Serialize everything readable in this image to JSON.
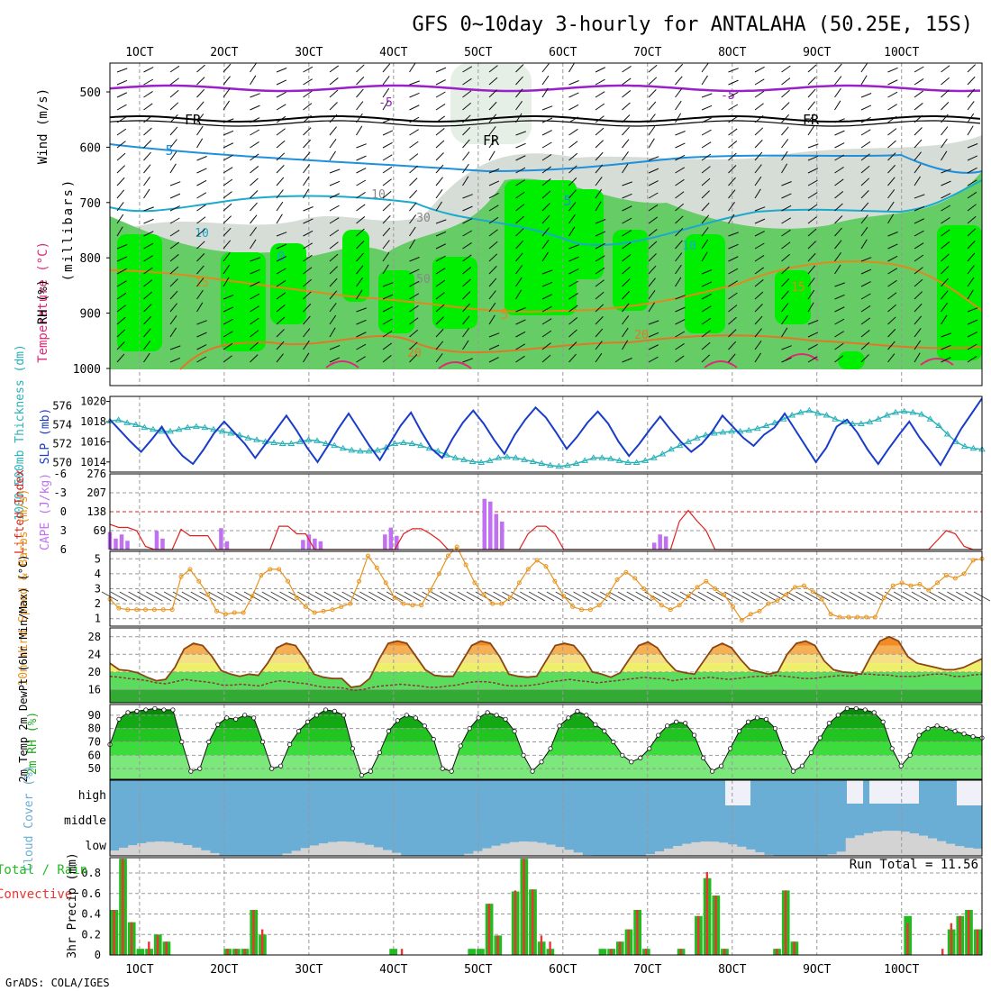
{
  "title": "GFS 0~10day 3-hourly for ANTALAHA (50.25E, 15S)",
  "credit": "GrADS: COLA/IGES",
  "date_labels": [
    "1OCT",
    "2OCT",
    "3OCT",
    "4OCT",
    "5OCT",
    "6OCT",
    "7OCT",
    "8OCT",
    "9OCT",
    "10OCT"
  ],
  "colors": {
    "grid": "#999999",
    "rh_light": "#d6dcd6",
    "rh_mid": "#66cc66",
    "rh_high": "#00ee00",
    "temp_5": "#1e90dc",
    "temp_10": "#1aaacc",
    "temp_15": "#e08a1e",
    "temp_20": "#e07828",
    "temp_minus5": "#9a20c8",
    "temp_25": "#e0287a",
    "slp": "#1a3cc8",
    "thickness": "#2ab2b8",
    "cape": "#c070f0",
    "lifted_index": "#dd2222",
    "wind10m": "#e8941e",
    "dewpoint": "#8b3a3a",
    "cloud_blue": "#6aaed6",
    "cloud_white": "#f0f0f8",
    "cloud_low": "#d3d3d3",
    "precip_total": "#22bb22",
    "precip_conv": "#ee3333"
  },
  "panels": {
    "upper_air": {
      "ylabel_wind": "Wind (m/s)",
      "ylabel_temp": "Temperature (°C)",
      "ylabel_rh": "RH (%)",
      "ylabel_units": "(millibars)",
      "ylevels": [
        500,
        600,
        700,
        800,
        900,
        1000
      ],
      "contour_labels": [
        "-5",
        "FR",
        "FR",
        "5",
        "5",
        "10",
        "10",
        "0",
        "15",
        "15",
        "5",
        "20",
        "20",
        "50",
        "30",
        "10"
      ]
    },
    "pressure": {
      "ylabel_left": "1000-500mb Thickness (dm)",
      "ylabel_right": "SLP (mb)",
      "left_ticks": [
        "576",
        "574",
        "572",
        "570"
      ],
      "right_ticks": [
        "1020",
        "1018",
        "1016",
        "1014"
      ]
    },
    "stability": {
      "ylabel_left": "Lifted Index",
      "ylabel_right": "CAPE (J/kg)",
      "left_ticks": [
        "-6",
        "-3",
        "0",
        "3",
        "6"
      ],
      "right_ticks": [
        "276",
        "207",
        "138",
        "69"
      ]
    },
    "wind10m": {
      "ylabel": "10m Wind Speed & Barbs (m/s)",
      "ticks": [
        "5",
        "4",
        "3",
        "2",
        "1"
      ]
    },
    "temp2m": {
      "ylabel": "2m Temp 2m DewPt (6hr Min/Max) (°C)",
      "ticks": [
        "28",
        "24",
        "20",
        "16"
      ]
    },
    "rh2m": {
      "ylabel": "2m RH (%)",
      "ticks": [
        "90",
        "80",
        "70",
        "60",
        "50"
      ]
    },
    "cloud": {
      "ylabel": "Cloud Cover (%)",
      "levels": [
        "high",
        "middle",
        "low"
      ]
    },
    "precip": {
      "ylabel_total": "Total / Rain",
      "ylabel_conv": "Convective",
      "ylabel_units": "3hr Precip (mm)",
      "ticks": [
        "0.8",
        "0.6",
        "0.4",
        "0.2",
        "0"
      ],
      "run_total": "Run Total = 11.56"
    }
  },
  "chart_data": [
    {
      "type": "line",
      "name": "Sea Level Pressure",
      "ylabel": "SLP (mb)",
      "ylim": [
        1013,
        1020.5
      ],
      "x_step_hours": 3,
      "values": [
        1018.2,
        1017.1,
        1016.0,
        1015.0,
        1016.2,
        1017.5,
        1015.8,
        1014.6,
        1013.8,
        1015.2,
        1016.8,
        1018.0,
        1016.9,
        1015.8,
        1014.4,
        1015.8,
        1017.2,
        1018.6,
        1017.1,
        1015.4,
        1014.0,
        1015.6,
        1017.3,
        1018.8,
        1017.2,
        1015.6,
        1014.2,
        1015.9,
        1017.6,
        1018.9,
        1017.0,
        1015.3,
        1014.4,
        1016.3,
        1017.9,
        1019.1,
        1017.8,
        1016.2,
        1014.8,
        1016.7,
        1018.2,
        1019.4,
        1018.4,
        1016.9,
        1015.3,
        1016.5,
        1017.9,
        1019.0,
        1017.8,
        1016.0,
        1014.6,
        1015.8,
        1017.2,
        1018.5,
        1017.2,
        1016.0,
        1015.0,
        1015.8,
        1017.0,
        1018.6,
        1017.5,
        1016.4,
        1015.6,
        1016.7,
        1017.4,
        1018.8,
        1017.2,
        1015.6,
        1014.0,
        1015.4,
        1017.5,
        1018.2,
        1016.9,
        1015.2,
        1013.8,
        1015.3,
        1016.7,
        1018.0,
        1016.4,
        1015.1,
        1013.7,
        1015.5,
        1017.3,
        1018.8,
        1020.3
      ]
    },
    {
      "type": "line",
      "name": "1000-500mb Thickness",
      "ylabel": "1000-500mb Thickness (dm)",
      "ylim": [
        569,
        577
      ],
      "x_step_hours": 3,
      "values": [
        574.4,
        574.5,
        574.2,
        574.0,
        573.7,
        573.5,
        573.3,
        573.3,
        573.5,
        573.7,
        573.8,
        573.7,
        573.5,
        573.3,
        573.1,
        572.9,
        572.6,
        572.4,
        572.2,
        572.1,
        572.0,
        572.0,
        572.2,
        572.4,
        572.3,
        572.0,
        571.8,
        571.5,
        571.3,
        571.2,
        571.2,
        571.3,
        571.6,
        572.0,
        572.1,
        572.0,
        571.8,
        571.5,
        571.2,
        570.8,
        570.5,
        570.3,
        570.1,
        570.0,
        570.2,
        570.5,
        570.6,
        570.5,
        570.3,
        570.1,
        569.9,
        569.7,
        569.6,
        569.7,
        569.9,
        570.2,
        570.5,
        570.5,
        570.4,
        570.2,
        570.0,
        570.0,
        570.2,
        570.5,
        570.9,
        571.4,
        571.8,
        572.2,
        572.6,
        572.9,
        573.1,
        573.2,
        573.3,
        573.3,
        573.4,
        573.6,
        573.9,
        574.2,
        574.6,
        575.0,
        575.3,
        575.5,
        575.2,
        575.0,
        574.6,
        574.3,
        574.1,
        574.1,
        574.3,
        574.6,
        575.0,
        575.3,
        575.4,
        575.3,
        575.1,
        574.6,
        573.9,
        573.0,
        572.2,
        571.7,
        571.5,
        571.4
      ]
    },
    {
      "type": "bar",
      "name": "CAPE",
      "ylabel": "CAPE (J/kg)",
      "ylim": [
        0,
        276
      ],
      "x_step_hours": 3,
      "values": [
        64,
        40,
        55,
        32,
        0,
        0,
        0,
        0,
        68,
        40,
        0,
        0,
        0,
        0,
        0,
        0,
        0,
        0,
        0,
        78,
        30,
        0,
        0,
        0,
        0,
        0,
        0,
        0,
        0,
        0,
        0,
        0,
        0,
        35,
        55,
        40,
        30,
        0,
        0,
        0,
        0,
        0,
        0,
        0,
        0,
        0,
        0,
        55,
        80,
        50,
        0,
        0,
        0,
        0,
        0,
        0,
        0,
        0,
        0,
        0,
        0,
        0,
        0,
        0,
        185,
        175,
        130,
        102,
        0,
        0,
        0,
        0,
        0,
        0,
        0,
        0,
        0,
        0,
        0,
        0,
        0,
        0,
        0,
        0,
        0,
        0,
        0,
        0,
        0,
        0,
        0,
        0,
        0,
        25,
        55,
        48,
        0,
        0,
        0,
        0,
        0,
        0,
        0,
        0,
        0,
        0,
        0,
        0,
        0,
        0,
        0,
        0,
        0,
        0,
        0,
        0,
        0,
        0,
        0,
        0,
        0,
        0,
        0,
        0,
        0,
        0,
        0,
        0,
        0,
        0,
        0,
        0,
        0,
        0,
        0,
        0,
        0,
        0,
        0,
        0,
        0,
        0,
        0,
        0,
        0,
        0,
        0,
        0,
        0,
        0
      ]
    },
    {
      "type": "line",
      "name": "Lifted Index",
      "ylabel": "Lifted Index",
      "ylim": [
        -6,
        6
      ],
      "x_step_hours": 3,
      "values": [
        2.0,
        2.5,
        2.5,
        3.0,
        5.5,
        6.0,
        6.0,
        6.0,
        2.8,
        3.8,
        3.8,
        3.8,
        6.0,
        6.0,
        6.0,
        6.0,
        6.0,
        6.0,
        6.0,
        2.3,
        2.3,
        3.5,
        3.5,
        6.0,
        6.0,
        6.0,
        6.0,
        6.0,
        6.0,
        6.0,
        6.0,
        6.0,
        6.0,
        3.5,
        2.7,
        2.7,
        3.5,
        4.5,
        6.0,
        6.0,
        6.0,
        6.0,
        6.0,
        6.0,
        6.0,
        6.0,
        6.0,
        3.5,
        2.3,
        2.3,
        3.5,
        6.0,
        6.0,
        6.0,
        6.0,
        6.0,
        6.0,
        6.0,
        6.0,
        6.0,
        6.0,
        6.0,
        6.0,
        6.0,
        1.5,
        -0.2,
        1.5,
        3.0,
        6.0,
        6.0,
        6.0,
        6.0,
        6.0,
        6.0,
        6.0,
        6.0,
        6.0,
        6.0,
        6.0,
        6.0,
        6.0,
        6.0,
        6.0,
        6.0,
        6.0,
        6.0,
        6.0,
        6.0,
        6.0,
        6.0,
        6.0,
        6.0,
        6.0,
        4.5,
        3.0,
        3.5,
        5.5,
        6.0,
        6.0
      ]
    },
    {
      "type": "line",
      "name": "10m Wind Speed",
      "ylabel": "10m Wind Speed & Barbs (m/s)",
      "ylim": [
        0.5,
        5.5
      ],
      "x_step_hours": 3,
      "values": [
        2.3,
        1.7,
        1.6,
        1.6,
        1.6,
        1.6,
        1.6,
        1.6,
        3.8,
        4.3,
        3.5,
        2.6,
        1.5,
        1.3,
        1.4,
        1.4,
        2.5,
        3.9,
        4.3,
        4.3,
        3.5,
        2.4,
        1.8,
        1.4,
        1.5,
        1.6,
        1.8,
        2.0,
        3.5,
        5.2,
        4.4,
        3.4,
        2.4,
        2.0,
        1.9,
        1.9,
        2.9,
        4.0,
        5.2,
        5.8,
        4.6,
        3.4,
        2.6,
        2.0,
        2.0,
        2.4,
        3.4,
        4.3,
        4.9,
        4.5,
        3.5,
        2.5,
        1.8,
        1.6,
        1.6,
        1.9,
        2.6,
        3.6,
        4.1,
        3.7,
        3.0,
        2.4,
        1.9,
        1.6,
        1.9,
        2.5,
        3.1,
        3.5,
        3.0,
        2.6,
        1.8,
        0.9,
        1.3,
        1.5,
        2.0,
        2.2,
        2.6,
        3.1,
        3.2,
        2.8,
        2.3,
        1.3,
        1.1,
        1.1,
        1.1,
        1.1,
        1.1,
        2.4,
        3.2,
        3.4,
        3.2,
        3.3,
        2.9,
        3.4,
        3.9,
        3.7,
        4.0,
        4.9,
        5.0
      ]
    },
    {
      "type": "area",
      "name": "2m Temperature",
      "ylabel": "2m Temp (°C)",
      "ylim": [
        13,
        30
      ],
      "x_step_hours": 3,
      "values": [
        22.0,
        20.5,
        20.3,
        19.8,
        18.8,
        18.0,
        18.3,
        21.0,
        25.2,
        26.5,
        26.0,
        23.5,
        20.3,
        19.5,
        19.0,
        19.5,
        19.2,
        22.0,
        25.5,
        26.5,
        26.0,
        23.0,
        19.5,
        18.8,
        18.5,
        18.5,
        16.5,
        16.8,
        18.5,
        22.8,
        26.5,
        27.0,
        26.5,
        23.5,
        20.5,
        19.2,
        19.0,
        19.0,
        22.5,
        26.0,
        27.0,
        26.5,
        23.5,
        19.5,
        19.0,
        18.8,
        19.0,
        22.5,
        26.0,
        26.5,
        26.0,
        23.5,
        20.0,
        19.5,
        18.8,
        19.8,
        23.0,
        26.0,
        26.8,
        25.5,
        22.5,
        20.3,
        19.8,
        19.5,
        22.5,
        25.5,
        26.5,
        25.5,
        22.8,
        20.5,
        20.0,
        19.5,
        20.0,
        24.0,
        26.5,
        27.0,
        26.0,
        22.5,
        20.5,
        20.0,
        19.8,
        19.5,
        23.5,
        27.0,
        28.0,
        27.0,
        23.5,
        22.0,
        21.5,
        21.0,
        20.5,
        20.5,
        21.0,
        22.0,
        23.0
      ]
    },
    {
      "type": "line",
      "name": "2m Dew Point",
      "ylabel": "2m DewPt (°C)",
      "ylim": [
        13,
        30
      ],
      "x_step_hours": 3,
      "values": [
        19.0,
        18.8,
        18.5,
        18.3,
        18.0,
        17.5,
        17.3,
        17.8,
        18.3,
        18.0,
        17.8,
        17.5,
        17.0,
        17.0,
        17.2,
        17.0,
        16.8,
        17.5,
        18.0,
        17.8,
        17.5,
        17.3,
        16.8,
        16.5,
        16.5,
        16.3,
        15.8,
        16.0,
        16.5,
        16.8,
        17.0,
        17.2,
        17.0,
        16.8,
        16.5,
        16.5,
        16.8,
        17.0,
        17.5,
        17.8,
        17.8,
        17.5,
        17.0,
        16.8,
        16.8,
        17.0,
        17.3,
        17.8,
        18.0,
        18.3,
        18.0,
        17.8,
        17.5,
        17.8,
        18.0,
        18.3,
        18.5,
        18.8,
        18.5,
        18.5,
        18.0,
        18.3,
        18.5,
        18.5,
        18.8,
        18.5,
        18.3,
        18.5,
        18.8,
        19.0,
        19.0,
        19.2,
        19.0,
        18.8,
        18.5,
        18.5,
        18.8,
        19.0,
        19.2,
        19.0,
        19.5,
        19.5,
        19.3,
        19.3,
        19.0,
        19.0,
        19.0,
        19.3,
        19.5,
        19.5,
        19.0,
        19.0,
        19.3,
        19.5
      ]
    },
    {
      "type": "area",
      "name": "2m Relative Humidity",
      "ylabel": "2m RH (%)",
      "ylim": [
        42,
        98
      ],
      "x_step_hours": 3,
      "values": [
        68,
        87,
        92,
        93,
        94,
        95,
        94,
        94,
        70,
        48,
        50,
        70,
        83,
        88,
        87,
        90,
        88,
        70,
        50,
        52,
        68,
        78,
        85,
        90,
        94,
        93,
        90,
        65,
        45,
        48,
        62,
        78,
        86,
        90,
        88,
        82,
        72,
        50,
        48,
        67,
        80,
        88,
        92,
        90,
        87,
        78,
        60,
        48,
        55,
        65,
        82,
        88,
        93,
        90,
        83,
        78,
        70,
        60,
        55,
        58,
        65,
        75,
        82,
        85,
        84,
        75,
        58,
        48,
        52,
        65,
        78,
        85,
        88,
        87,
        80,
        62,
        48,
        52,
        62,
        73,
        84,
        90,
        95,
        95,
        94,
        92,
        85,
        65,
        52,
        60,
        75,
        80,
        82,
        80,
        78,
        76,
        74,
        73
      ]
    },
    {
      "type": "bar",
      "name": "3hr Precip",
      "ylabel": "3hr Precip (mm)",
      "ylim": [
        0,
        0.95
      ],
      "x_step_hours": 3,
      "run_total": 11.56,
      "series": [
        {
          "name": "Total / Rain",
          "values": [
            0.44,
            0.94,
            0.32,
            0.06,
            0.06,
            0.2,
            0.13,
            0,
            0,
            0,
            0,
            0,
            0,
            0.06,
            0.06,
            0.06,
            0.44,
            0.2,
            0,
            0,
            0,
            0,
            0,
            0,
            0,
            0,
            0,
            0,
            0,
            0,
            0,
            0,
            0.06,
            0,
            0,
            0,
            0,
            0,
            0,
            0,
            0,
            0.06,
            0.06,
            0.5,
            0.19,
            0,
            0.62,
            0.94,
            0.64,
            0.13,
            0.06,
            0,
            0,
            0,
            0,
            0,
            0.06,
            0.06,
            0.13,
            0.25,
            0.44,
            0.06,
            0,
            0,
            0,
            0.06,
            0,
            0.38,
            0.75,
            0.58,
            0.06,
            0,
            0,
            0,
            0,
            0,
            0.06,
            0.63,
            0.13,
            0,
            0,
            0,
            0,
            0,
            0,
            0,
            0,
            0,
            0,
            0,
            0,
            0.38,
            0,
            0,
            0,
            0,
            0.25,
            0.38,
            0.44,
            0.25
          ]
        },
        {
          "name": "Convective",
          "values": [
            0.44,
            0.94,
            0.32,
            0,
            0.13,
            0.19,
            0.13,
            0,
            0,
            0,
            0,
            0,
            0,
            0.06,
            0.06,
            0.06,
            0.44,
            0.25,
            0,
            0,
            0,
            0,
            0,
            0,
            0,
            0,
            0,
            0,
            0,
            0,
            0,
            0,
            0,
            0.06,
            0,
            0,
            0,
            0,
            0,
            0,
            0,
            0,
            0,
            0.5,
            0.19,
            0,
            0.63,
            0.94,
            0.64,
            0.19,
            0.13,
            0,
            0,
            0,
            0,
            0,
            0,
            0.06,
            0.13,
            0.25,
            0.44,
            0.06,
            0,
            0,
            0,
            0.06,
            0,
            0.38,
            0.81,
            0.58,
            0.06,
            0,
            0,
            0,
            0,
            0,
            0.06,
            0.63,
            0.13,
            0,
            0,
            0,
            0,
            0,
            0,
            0,
            0,
            0,
            0,
            0,
            0,
            0.31,
            0,
            0,
            0,
            0.06,
            0.31,
            0.38,
            0.44,
            0.25
          ]
        }
      ]
    }
  ]
}
